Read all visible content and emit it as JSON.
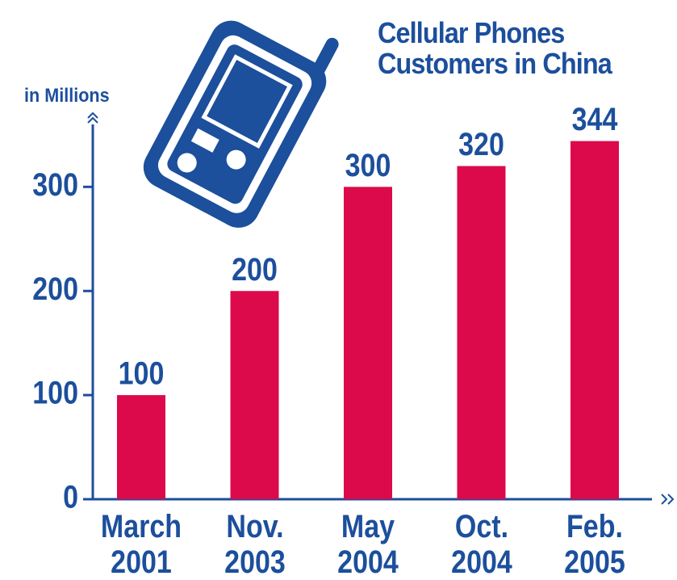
{
  "chart_data": {
    "type": "bar",
    "title": "Cellular Phones\nCustomers in China",
    "y_axis_label": "in Millions",
    "categories": [
      "March\n2001",
      "Nov.\n2003",
      "May\n2004",
      "Oct.\n2004",
      "Feb.\n2005"
    ],
    "values": [
      100,
      200,
      300,
      320,
      344
    ],
    "color": "#dc0a4b",
    "axis_color": "#1c4f9c",
    "ylim": [
      0,
      360
    ],
    "yticks": [
      0,
      100,
      200,
      300
    ],
    "grid": false
  }
}
